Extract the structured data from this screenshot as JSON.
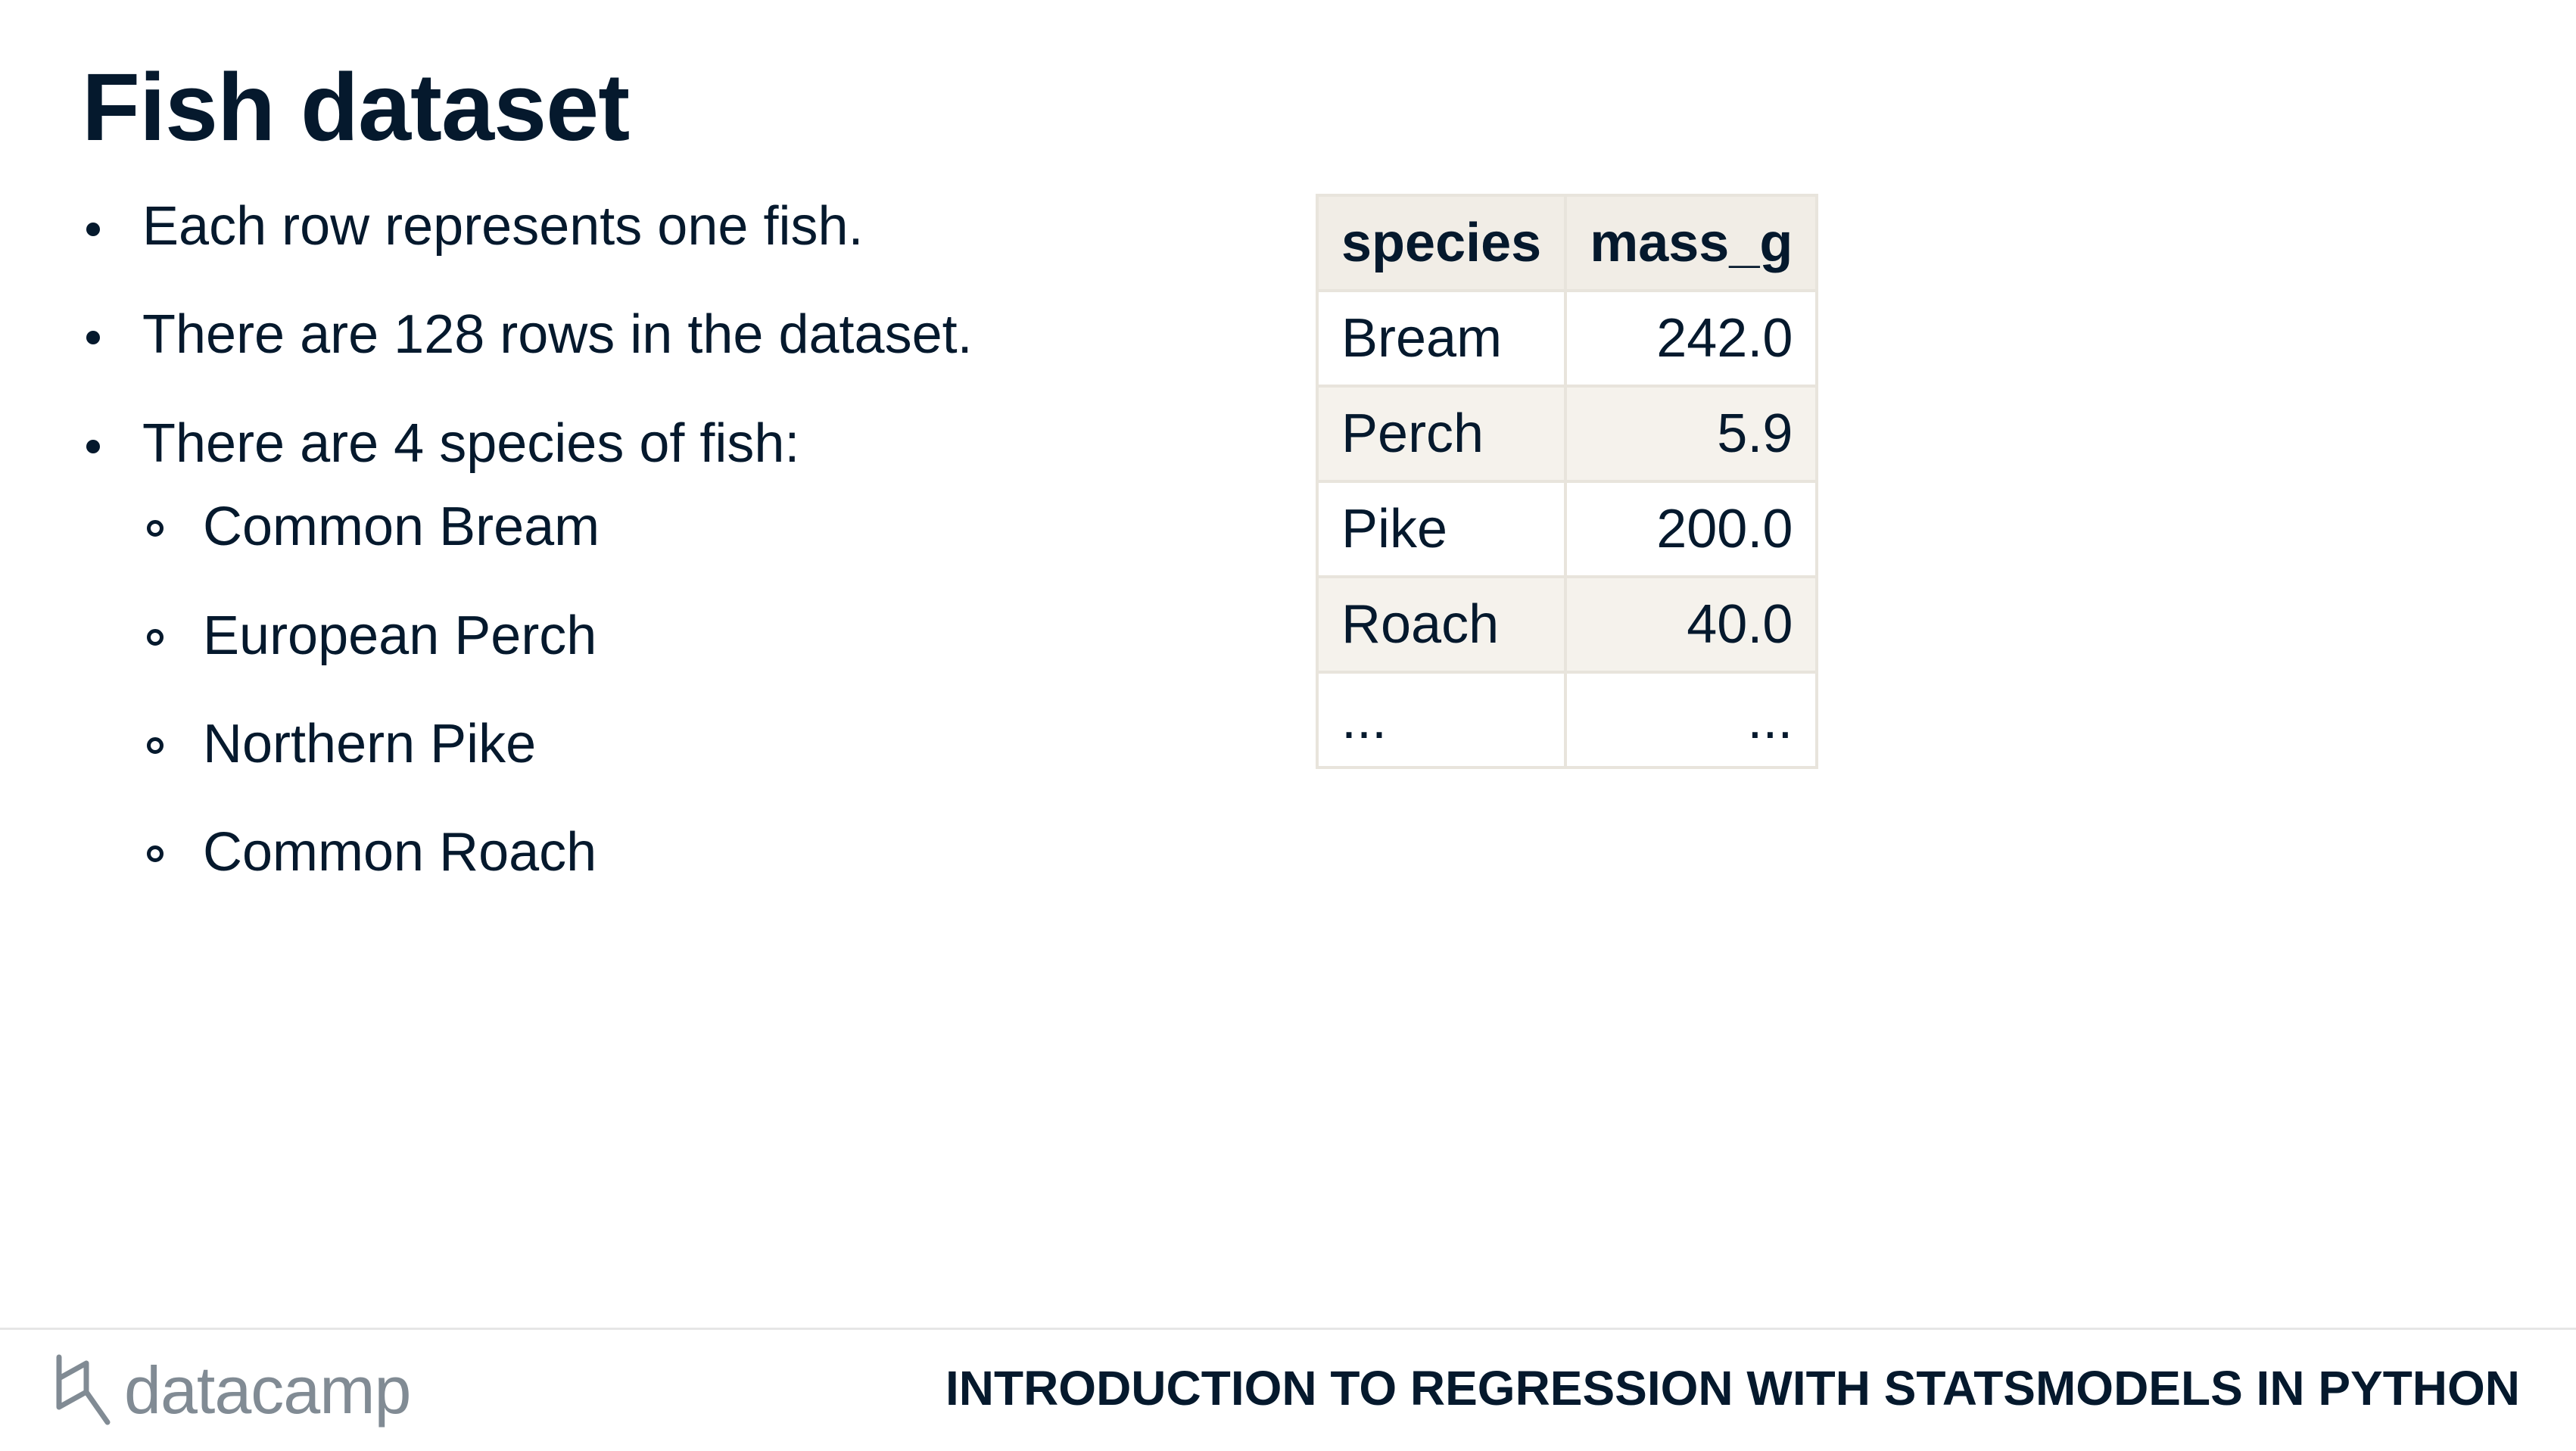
{
  "slide": {
    "title": "Fish dataset",
    "bullets": [
      "Each row represents one fish.",
      "There are 128 rows in the dataset.",
      "There are 4 species of fish:"
    ],
    "sub_bullets": [
      "Common Bream",
      "European Perch",
      "Northern Pike",
      "Common Roach"
    ]
  },
  "table": {
    "headers": [
      "species",
      "mass_g"
    ],
    "rows": [
      [
        "Bream",
        "242.0"
      ],
      [
        "Perch",
        "5.9"
      ],
      [
        "Pike",
        "200.0"
      ],
      [
        "Roach",
        "40.0"
      ],
      [
        "...",
        "..."
      ]
    ]
  },
  "footer": {
    "logo_text": "datacamp",
    "course_title": "INTRODUCTION TO REGRESSION WITH STATSMODELS IN PYTHON"
  },
  "colors": {
    "text": "#05192d",
    "table_header_bg": "#f1ede6",
    "table_stripe_bg": "#f5f2ec",
    "logo_gray": "#818b94"
  }
}
